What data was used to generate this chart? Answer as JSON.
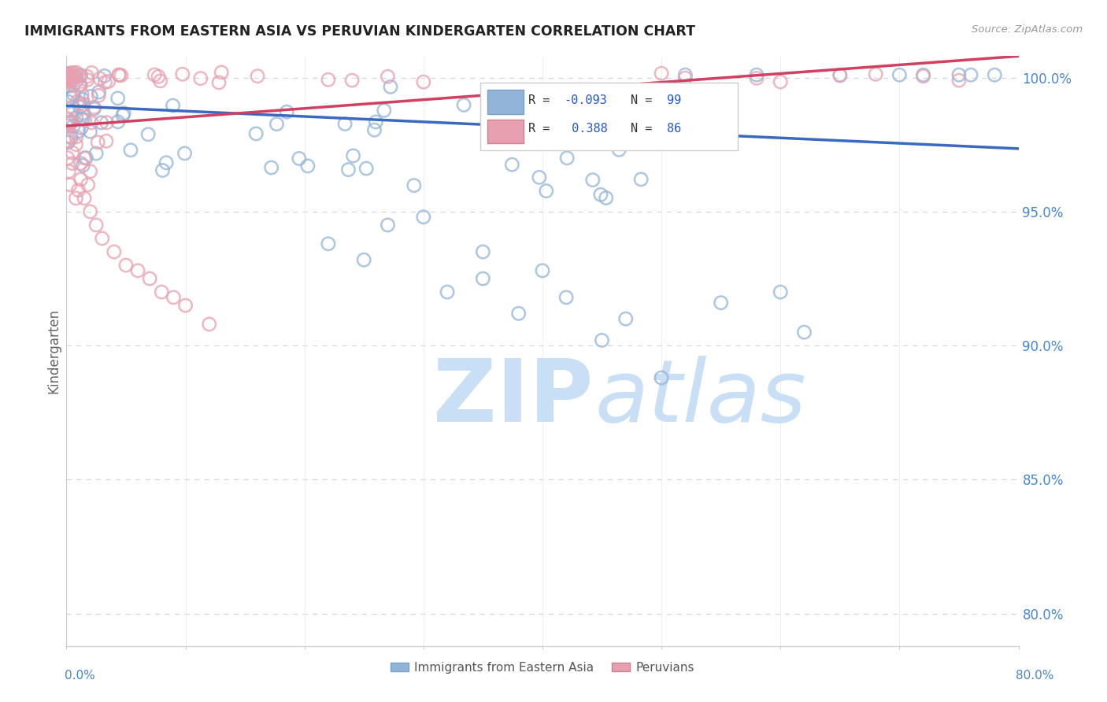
{
  "title": "IMMIGRANTS FROM EASTERN ASIA VS PERUVIAN KINDERGARTEN CORRELATION CHART",
  "source": "Source: ZipAtlas.com",
  "ylabel": "Kindergarten",
  "ytick_vals": [
    0.8,
    0.85,
    0.9,
    0.95,
    1.0
  ],
  "xlim": [
    0.0,
    0.8
  ],
  "ylim": [
    0.788,
    1.008
  ],
  "color_blue": "#92b4d9",
  "color_pink": "#e8a0b0",
  "color_blue_line": "#3a6abf",
  "color_pink_line": "#d04060",
  "color_axis": "#4a86c8",
  "grid_color": "#d0d8e8",
  "blue_trend_x0": 0.0,
  "blue_trend_y0": 0.9895,
  "blue_trend_x1": 0.8,
  "blue_trend_y1": 0.9735,
  "pink_trend_x0": 0.0,
  "pink_trend_y0": 0.982,
  "pink_trend_x1": 0.8,
  "pink_trend_y1": 1.008
}
